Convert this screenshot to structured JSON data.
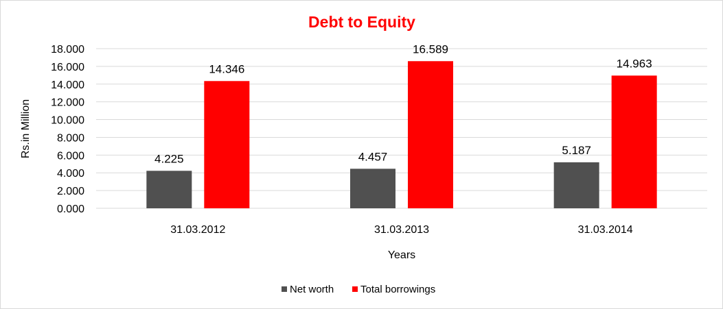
{
  "chart_data": {
    "type": "bar",
    "title": "Debt to Equity",
    "xlabel": "Years",
    "ylabel": "Rs.in Million",
    "categories": [
      "31.03.2012",
      "31.03.2013",
      "31.03.2014"
    ],
    "series": [
      {
        "name": "Net worth",
        "color": "#505050",
        "values": [
          4.225,
          4.457,
          5.187
        ],
        "labels": [
          "4.225",
          "4.457",
          "5.187"
        ]
      },
      {
        "name": "Total borrowings",
        "color": "#ff0000",
        "values": [
          14.346,
          16.589,
          14.963
        ],
        "labels": [
          "14.346",
          "16.589",
          "14.963"
        ]
      }
    ],
    "ylim": [
      0,
      18
    ],
    "yticks": [
      "0.000",
      "2.000",
      "4.000",
      "6.000",
      "8.000",
      "10.000",
      "12.000",
      "14.000",
      "16.000",
      "18.000"
    ],
    "grid": true,
    "legend_position": "bottom"
  }
}
